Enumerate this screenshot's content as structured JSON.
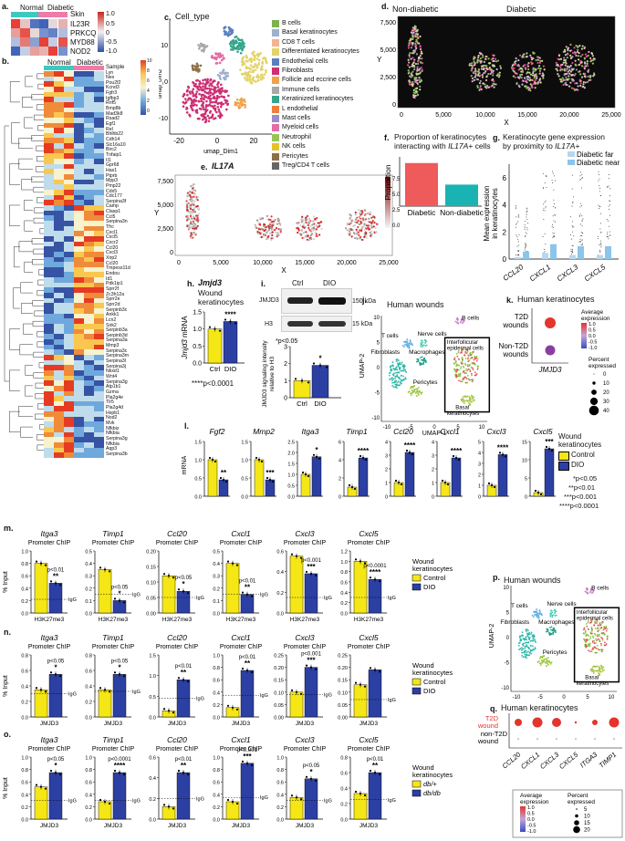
{
  "panel_a": {
    "letter": "a.",
    "groups": [
      "Normal",
      "Diabetic"
    ],
    "sample_label": "Skin",
    "genes": [
      "IL23R",
      "PRKCQ",
      "MYD88",
      "NOD2"
    ],
    "scale_ticks": [
      "1.0",
      "0.5",
      "0",
      "-0.5",
      "-1.0"
    ]
  },
  "panel_b": {
    "letter": "b.",
    "groups": [
      "Normal",
      "Diabetic"
    ],
    "sample_label": "Sample",
    "scale_ticks": [
      "10",
      "8",
      "6",
      "4",
      "2",
      "0"
    ],
    "genes": [
      "Lyn",
      "Nes",
      "Pou2f2",
      "Kcnd3",
      "Fgfr3",
      "Igfbp3",
      "Rnf5",
      "Bmp8b",
      "Mad3k8",
      "Rsad2",
      "Egf1",
      "Rel",
      "Bhlhb22",
      "Cdh14",
      "Slc16a10",
      "Birc2",
      "Tnfaip1",
      "II1",
      "Gpr68",
      "Has1",
      "Ptprb",
      "Mpp3",
      "Pmp22",
      "Cdx5",
      "Cdc177",
      "Serpina3f",
      "Camp",
      "Clasp1",
      "Ccl5",
      "Serpina3n",
      "Tfrc",
      "Cxcl1",
      "Cxcl5",
      "Cxcr2",
      "Ccl20",
      "Cxcl3",
      "Xirp2",
      "Ccl20",
      "Tmpess11d",
      "Endou",
      "Id1",
      "Pdk1ip1",
      "Sprr2f",
      "Zc3h12a",
      "Sprr2e",
      "Sprr2d",
      "Serpinb3c",
      "Ankk1",
      "Lcn2",
      "Sirk2",
      "Serpinb3a",
      "Serpinb3d",
      "Serpina3a",
      "Mmp3",
      "Serpina3c",
      "Serpina3m",
      "Serpina3l",
      "Serpina3j",
      "Nkxd1",
      "Wnt4",
      "Serpina3g",
      "Atp1b1",
      "Gzma",
      "Pla2g4e",
      "Tlr5",
      "Pla2g4d",
      "Hspb1",
      "Nod2",
      "Mvk",
      "Nfkbiz",
      "Nfkbia",
      "Serpina3g",
      "Nfkbia",
      "Aqp3",
      "Serpina3b"
    ]
  },
  "panel_c": {
    "letter": "c.",
    "title": "Cell_type",
    "xlabel": "umap_Dim1",
    "ylabel": "umap_Dim2",
    "xticks": [
      "-20",
      "0",
      "20"
    ],
    "yticks": [
      "10",
      "0",
      "-10"
    ],
    "legend": [
      {
        "name": "B cells",
        "color": "#7fb24e"
      },
      {
        "name": "Basal keratinocytes",
        "color": "#9fb0d0"
      },
      {
        "name": "CD8 T cells",
        "color": "#f2b38e"
      },
      {
        "name": "Differentiated keratinocytes",
        "color": "#e3d36a"
      },
      {
        "name": "Endothelial cells",
        "color": "#5a7fbf"
      },
      {
        "name": "Fibroblasts",
        "color": "#cc2f73"
      },
      {
        "name": "Follicle and eccrine cells",
        "color": "#f0a24a"
      },
      {
        "name": "Immune cells",
        "color": "#a8a8a8"
      },
      {
        "name": "Keratinized keratinocytes",
        "color": "#35a58b"
      },
      {
        "name": "L endothelial",
        "color": "#ef7f3c"
      },
      {
        "name": "Mast cells",
        "color": "#9a8cc7"
      },
      {
        "name": "Myeloid cells",
        "color": "#e26da7"
      },
      {
        "name": "Neutrophil",
        "color": "#99c454"
      },
      {
        "name": "NK cells",
        "color": "#e6c02e"
      },
      {
        "name": "Pericytes",
        "color": "#8b6f49"
      },
      {
        "name": "Treg/CD4 T cells",
        "color": "#666666"
      }
    ]
  },
  "panel_d": {
    "letter": "d.",
    "left_title": "Non-diabetic",
    "right_title": "Diabetic",
    "ylabel": "Y",
    "xlabel": "X",
    "xticks": [
      "0",
      "5,000",
      "10,000",
      "15,000",
      "20,000",
      "25,000"
    ],
    "yticks": [
      "7,500",
      "5,000",
      "2,500",
      "0"
    ]
  },
  "panel_e": {
    "letter": "e.",
    "title": "IL17A",
    "ylabel": "Y",
    "xlabel": "X",
    "xticks": [
      "0",
      "5,000",
      "10,000",
      "15,000",
      "20,000",
      "25,000"
    ],
    "yticks": [
      "7,500",
      "5,000",
      "2,500",
      "0"
    ],
    "scale_ticks": [
      "7.5",
      "5.0",
      "2.5",
      "0.0"
    ]
  },
  "panel_f": {
    "letter": "f.",
    "title_line1": "Proportion of keratinocytes",
    "title_line2_pre": "interacting with ",
    "title_line2_gene": "IL17A+",
    "title_line2_post": " cells",
    "ylabel": "Proportion",
    "chart_data": {
      "type": "bar",
      "categories": [
        "Diabetic",
        "Non-diabetic"
      ],
      "values": [
        0.07,
        0.035
      ],
      "colors": [
        "#ef5a5a",
        "#1ab3b3"
      ],
      "ylim": [
        0,
        0.08
      ]
    }
  },
  "panel_g": {
    "letter": "g.",
    "title_line1": "Keratinocyte gene expression",
    "title_line2_pre": "by proximity to ",
    "title_line2_gene": "IL17A+",
    "legend": [
      "Diabetic far",
      "Diabetic near"
    ],
    "ylabel_line1": "Mean expression",
    "ylabel_line2": "in keratinocytes",
    "yticks": [
      "6",
      "4",
      "2",
      "0"
    ],
    "chart_data": {
      "type": "bar",
      "categories": [
        "CCL20",
        "CXCL1",
        "CXCL3",
        "CXCL5"
      ],
      "series": [
        {
          "name": "Diabetic far",
          "values": [
            0.15,
            0.45,
            0.3,
            0.3
          ]
        },
        {
          "name": "Diabetic near",
          "values": [
            0.55,
            1.1,
            0.95,
            0.95
          ]
        }
      ],
      "ylim": [
        0,
        7
      ]
    }
  },
  "panel_h": {
    "letter": "h.",
    "title": "Jmjd3",
    "subtitle1": "Wound",
    "subtitle2": "keratinocytes",
    "ylabel_gene": "Jmjd3",
    "ylabel_rest": " mRNA",
    "yticks": [
      "1.5",
      "1.0",
      "0.5",
      "0.0"
    ],
    "sig": "****",
    "pnote": "****p<0.0001",
    "chart_data": {
      "type": "bar",
      "categories": [
        "Ctrl",
        "DIO"
      ],
      "values": [
        1.0,
        1.22
      ],
      "ylim": [
        0,
        1.5
      ]
    }
  },
  "panel_i": {
    "letter": "i.",
    "lanes": [
      "Ctrl",
      "DIO"
    ],
    "rows": [
      "JMJD3",
      "H3"
    ],
    "kda": [
      "150 kDa",
      "15 kDa"
    ],
    "note": "*p<0.05",
    "sig": "*",
    "ylabel_line1": "JMJD3 signaling intensity",
    "ylabel_line2": "relative to H3",
    "yticks": [
      "3",
      "2",
      "1",
      "0"
    ],
    "chart_data": {
      "type": "bar",
      "categories": [
        "Ctrl",
        "DIO"
      ],
      "values": [
        1.0,
        1.9
      ],
      "ylim": [
        0,
        3
      ]
    }
  },
  "panel_j": {
    "letter": "j.",
    "title": "Human wounds",
    "xlabel": "UMAP-1",
    "ylabel": "UMAP-2",
    "xticks": [
      "-10",
      "-5",
      "0",
      "5",
      "10"
    ],
    "yticks": [
      "10",
      "5",
      "0",
      "-5",
      "-10"
    ],
    "clusters": [
      "B cells",
      "T cells",
      "Nerve cells",
      "Fibroblasts",
      "Macrophages",
      "Pericytes",
      "Interfollicular epidermal cells",
      "Basal keratinocytes"
    ]
  },
  "panel_k": {
    "letter": "k.",
    "title": "Human keratinocytes",
    "rows": [
      "T2D wounds",
      "Non-T2D wounds"
    ],
    "gene": "JMJD3",
    "avg_label_line1": "Average",
    "avg_label_line2": "expression",
    "avg_ticks": [
      "1.0",
      "0.5",
      "0.0",
      "-0.5",
      "-1.0"
    ],
    "pct_label_line1": "Percent",
    "pct_label_line2": "expressed",
    "pct_ticks": [
      "0",
      "10",
      "20",
      "30",
      "40"
    ]
  },
  "panel_l": {
    "letter": "l.",
    "ylabel": "mRNA",
    "legend_title_line1": "Wound",
    "legend_title_line2": "keratinocytes",
    "legend_items": [
      "Control",
      "DIO"
    ],
    "pnotes": [
      "*p<0.05",
      "**p<0.01",
      "***p<0.001",
      "****p<0.0001"
    ],
    "chart_data": [
      {
        "gene": "Fgf2",
        "ctrl": 1.0,
        "dio": 0.45,
        "ymax": 1.5,
        "yticks": [
          "1.5",
          "1.0",
          "0.5",
          "0.0"
        ],
        "sig": "**"
      },
      {
        "gene": "Mmp2",
        "ctrl": 1.0,
        "dio": 0.45,
        "ymax": 1.5,
        "yticks": [
          "1.5",
          "1.0",
          "0.5",
          "0.0"
        ],
        "sig": "***"
      },
      {
        "gene": "Itga3",
        "ctrl": 1.0,
        "dio": 1.8,
        "ymax": 2.5,
        "yticks": [
          "2.5",
          "2.0",
          "1.5",
          "1.0",
          "0.5",
          "0.0"
        ],
        "sig": "*"
      },
      {
        "gene": "Timp1",
        "ctrl": 1.0,
        "dio": 4.2,
        "ymax": 6,
        "yticks": [
          "6",
          "4",
          "2",
          "0"
        ],
        "sig": "****"
      },
      {
        "gene": "Ccl20",
        "ctrl": 1.0,
        "dio": 3.2,
        "ymax": 4,
        "yticks": [
          "4",
          "3",
          "2",
          "1",
          "0"
        ],
        "sig": "****"
      },
      {
        "gene": "Cxcl1",
        "ctrl": 1.0,
        "dio": 2.8,
        "ymax": 4,
        "yticks": [
          "4",
          "3",
          "2",
          "1",
          "0"
        ],
        "sig": "****"
      },
      {
        "gene": "Cxcl3",
        "ctrl": 1.0,
        "dio": 3.8,
        "ymax": 5,
        "yticks": [
          "5",
          "4",
          "3",
          "2",
          "1",
          "0"
        ],
        "sig": "****"
      },
      {
        "gene": "Cxcl5",
        "ctrl": 1.0,
        "dio": 13,
        "ymax": 15,
        "yticks": [
          "15",
          "10",
          "5",
          "0"
        ],
        "sig": "***"
      }
    ]
  },
  "panel_m": {
    "letter": "m.",
    "ylabel": "% Input",
    "subtitle": "Promoter ChIP",
    "legend_title_line1": "Wound",
    "legend_title_line2": "keratinocytes",
    "legend_items": [
      "Control",
      "DIO"
    ],
    "chart_data": [
      {
        "gene": "Itga3",
        "ctrl": 0.8,
        "dio": 0.48,
        "ymax": 1.0,
        "yticks": [
          "1.0",
          "0.8",
          "0.6",
          "0.4",
          "0.2",
          "0.0"
        ],
        "igg": 0.22,
        "xlabel": "H3K27me3",
        "sig": "**",
        "p": "p<0.01"
      },
      {
        "gene": "Timp1",
        "ctrl": 0.35,
        "dio": 0.1,
        "ymax": 0.5,
        "yticks": [
          "0.5",
          "0.4",
          "0.3",
          "0.2",
          "0.1",
          "0.0"
        ],
        "igg": 0.15,
        "xlabel": "H3K27me3",
        "sig": "*",
        "p": "p<0.05"
      },
      {
        "gene": "Ccl20",
        "ctrl": 0.12,
        "dio": 0.07,
        "ymax": 0.2,
        "yticks": [
          "0.20",
          "0.15",
          "0.10",
          "0.05",
          "0.00"
        ],
        "igg": 0.05,
        "xlabel": "H3K27me3",
        "sig": "*",
        "p": "p<0.05"
      },
      {
        "gene": "Cxcl1",
        "ctrl": 0.4,
        "dio": 0.15,
        "ymax": 0.5,
        "yticks": [
          "0.5",
          "0.4",
          "0.3",
          "0.2",
          "0.1",
          "0.0"
        ],
        "igg": 0.15,
        "xlabel": "H3K27me3",
        "sig": "**",
        "p": "p<0.01"
      },
      {
        "gene": "Cxcl3",
        "ctrl": 0.55,
        "dio": 0.38,
        "ymax": 0.6,
        "yticks": [
          "0.6",
          "0.4",
          "0.2",
          "0.0"
        ],
        "igg": 0.15,
        "xlabel": "H3K27me3",
        "sig": "***",
        "p": "p<0.001"
      },
      {
        "gene": "Cxcl5",
        "ctrl": 1.0,
        "dio": 0.65,
        "ymax": 1.2,
        "yticks": [
          "1.2",
          "1.0",
          "0.8",
          "0.6",
          "0.4",
          "0.2",
          "0.0"
        ],
        "igg": 0.3,
        "xlabel": "H3K27me3",
        "sig": "****",
        "p": "p<0.0001"
      }
    ]
  },
  "panel_n": {
    "letter": "n.",
    "ylabel": "% Input",
    "subtitle": "Promoter ChIP",
    "legend_title_line1": "Wound",
    "legend_title_line2": "keratinocytes",
    "legend_items": [
      "Control",
      "DIO"
    ],
    "chart_data": [
      {
        "gene": "Itga3",
        "ctrl": 0.35,
        "dio": 0.55,
        "ymax": 0.8,
        "yticks": [
          "0.8",
          "0.6",
          "0.4",
          "0.2",
          "0.0"
        ],
        "igg": 0.3,
        "xlabel": "JMJD3",
        "sig": "*",
        "p": "p<0.05"
      },
      {
        "gene": "Timp1",
        "ctrl": 0.35,
        "dio": 0.55,
        "ymax": 0.8,
        "yticks": [
          "0.8",
          "0.6",
          "0.4",
          "0.2",
          "0.0"
        ],
        "igg": 0.33,
        "xlabel": "JMJD3",
        "sig": "*",
        "p": "p<0.05"
      },
      {
        "gene": "Ccl20",
        "ctrl": 0.15,
        "dio": 0.9,
        "ymax": 1.5,
        "yticks": [
          "1.5",
          "1.0",
          "0.5",
          "0.0"
        ],
        "igg": 0.45,
        "xlabel": "JMJD3",
        "sig": "**",
        "p": "p<0.01"
      },
      {
        "gene": "Cxcl1",
        "ctrl": 0.15,
        "dio": 0.75,
        "ymax": 1.0,
        "yticks": [
          "1.0",
          "0.8",
          "0.6",
          "0.4",
          "0.2",
          "0.0"
        ],
        "igg": 0.35,
        "xlabel": "JMJD3",
        "sig": "**",
        "p": "p<0.01"
      },
      {
        "gene": "Cxcl3",
        "ctrl": 0.1,
        "dio": 0.2,
        "ymax": 0.25,
        "yticks": [
          "0.25",
          "0.20",
          "0.15",
          "0.10",
          "0.05",
          "0.00"
        ],
        "igg": 0.09,
        "xlabel": "JMJD3",
        "sig": "***",
        "p": "p<0.001"
      },
      {
        "gene": "Cxcl5",
        "ctrl": 0.13,
        "dio": 0.19,
        "ymax": 0.25,
        "yticks": [
          "0.25",
          "0.20",
          "0.15",
          "0.10",
          "0.05",
          "0.00"
        ],
        "igg": 0.07,
        "xlabel": "JMJD3",
        "sig": "",
        "p": ""
      }
    ]
  },
  "panel_o": {
    "letter": "o.",
    "ylabel": "% Input",
    "subtitle": "Promoter ChIP",
    "legend_title_line1": "Wound",
    "legend_title_line2": "keratinocytes",
    "legend_items": [
      "db/+",
      "db/db"
    ],
    "chart_data": [
      {
        "gene": "Itga3",
        "ctrl": 0.52,
        "dio": 0.75,
        "ymax": 1.0,
        "yticks": [
          "1.0",
          "0.8",
          "0.6",
          "0.4",
          "0.2",
          "0.0"
        ],
        "igg": 0.3,
        "xlabel": "JMJD3",
        "sig": "*",
        "p": "p<0.05"
      },
      {
        "gene": "Timp1",
        "ctrl": 0.28,
        "dio": 0.75,
        "ymax": 1.0,
        "yticks": [
          "1.0",
          "0.8",
          "0.6",
          "0.4",
          "0.2",
          "0.0"
        ],
        "igg": 0.3,
        "xlabel": "JMJD3",
        "sig": "****",
        "p": "p<0.0001"
      },
      {
        "gene": "Ccl20",
        "ctrl": 0.12,
        "dio": 0.45,
        "ymax": 0.6,
        "yticks": [
          "0.6",
          "0.4",
          "0.2",
          "0.0"
        ],
        "igg": 0.2,
        "xlabel": "JMJD3",
        "sig": "**",
        "p": "p<0.01"
      },
      {
        "gene": "Cxcl1",
        "ctrl": 0.28,
        "dio": 0.9,
        "ymax": 1.0,
        "yticks": [
          "1.0",
          "0.8",
          "0.6",
          "0.4",
          "0.2",
          "0.0"
        ],
        "igg": 0.35,
        "xlabel": "JMJD3",
        "sig": "***",
        "p": "p<0.001"
      },
      {
        "gene": "Cxcl3",
        "ctrl": 0.35,
        "dio": 0.65,
        "ymax": 1.0,
        "yticks": [
          "1.0",
          "0.8",
          "0.6",
          "0.4",
          "0.2",
          "0.0"
        ],
        "igg": 0.3,
        "xlabel": "JMJD3",
        "sig": "*",
        "p": "p<0.05"
      },
      {
        "gene": "Cxcl5",
        "ctrl": 0.33,
        "dio": 0.6,
        "ymax": 0.8,
        "yticks": [
          "0.8",
          "0.6",
          "0.4",
          "0.2",
          "0.0"
        ],
        "igg": 0.25,
        "xlabel": "JMJD3",
        "sig": "**",
        "p": "p<0.01"
      }
    ]
  },
  "panel_p": {
    "letter": "p.",
    "title": "Human wounds",
    "xlabel": "UMAP-1",
    "ylabel": "UMAP-2",
    "xticks": [
      "-10",
      "-5",
      "0",
      "5",
      "10"
    ],
    "yticks": [
      "10",
      "5",
      "0",
      "-5",
      "-10"
    ],
    "clusters": [
      "B cells",
      "T cells",
      "Nerve cells",
      "Fibroblasts",
      "Macrophages",
      "Pericytes",
      "Interfollicular epidermal cells",
      "Basal keratinocytes"
    ]
  },
  "panel_q": {
    "letter": "q.",
    "title": "Human keratinocytes",
    "rows": [
      "T2D wound",
      "non-T2D wound"
    ],
    "genes": [
      "CCL20",
      "CXCL1",
      "CXCL3",
      "CXCL5",
      "ITGA3",
      "TIMP1"
    ],
    "avg_label_line1": "Average",
    "avg_label_line2": "expression",
    "avg_ticks": [
      "1.0",
      "0.5",
      "0.0",
      "-0.5",
      "-1.0"
    ],
    "pct_label_line1": "Percent",
    "pct_label_line2": "expressed",
    "pct_ticks": [
      "5",
      "10",
      "15",
      "20"
    ]
  }
}
